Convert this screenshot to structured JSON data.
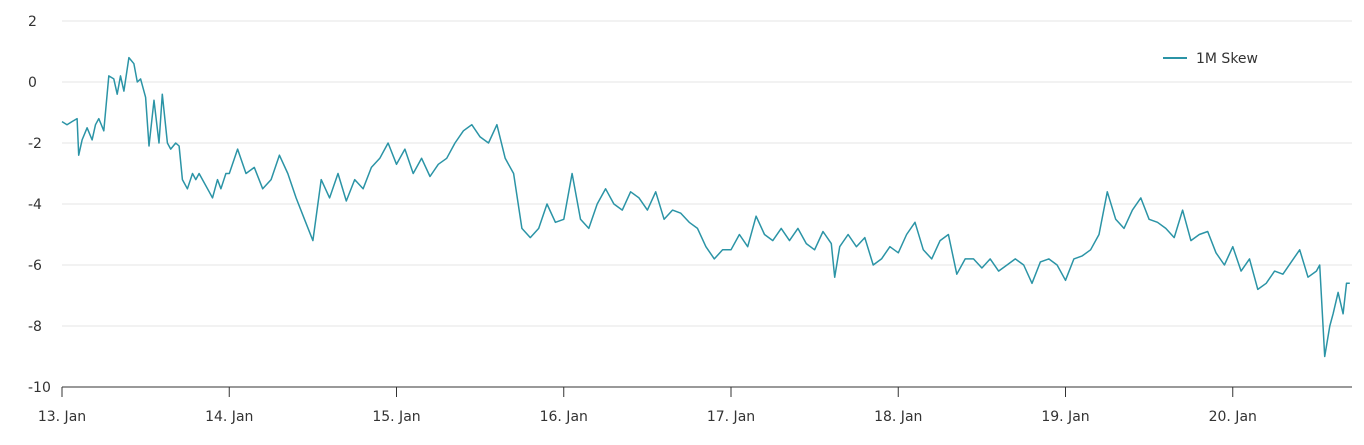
{
  "chart_data": {
    "type": "line",
    "title": "",
    "xlabel": "",
    "ylabel": "",
    "ylim": [
      -10,
      2
    ],
    "xlim": [
      0,
      7.7
    ],
    "y_ticks": [
      "2",
      "0",
      "-2",
      "-4",
      "-6",
      "-8",
      "-10"
    ],
    "x_ticks": [
      "13. Jan",
      "14. Jan",
      "15. Jan",
      "16. Jan",
      "17. Jan",
      "18. Jan",
      "19. Jan",
      "20. Jan"
    ],
    "grid": "horizontal",
    "legend_position": "top-right",
    "series": [
      {
        "name": "1M Skew",
        "color": "#2b94a6",
        "x": [
          0,
          0.03,
          0.06,
          0.09,
          0.1,
          0.12,
          0.15,
          0.18,
          0.2,
          0.22,
          0.25,
          0.28,
          0.31,
          0.33,
          0.35,
          0.37,
          0.4,
          0.43,
          0.45,
          0.47,
          0.5,
          0.52,
          0.55,
          0.58,
          0.6,
          0.63,
          0.65,
          0.68,
          0.7,
          0.72,
          0.75,
          0.78,
          0.8,
          0.82,
          0.85,
          0.88,
          0.9,
          0.93,
          0.95,
          0.98,
          1.0,
          1.05,
          1.1,
          1.15,
          1.2,
          1.25,
          1.3,
          1.35,
          1.4,
          1.45,
          1.5,
          1.55,
          1.6,
          1.65,
          1.7,
          1.75,
          1.8,
          1.85,
          1.9,
          1.95,
          2.0,
          2.05,
          2.1,
          2.15,
          2.2,
          2.25,
          2.3,
          2.35,
          2.4,
          2.45,
          2.5,
          2.55,
          2.6,
          2.65,
          2.7,
          2.75,
          2.8,
          2.85,
          2.9,
          2.95,
          3.0,
          3.05,
          3.1,
          3.15,
          3.2,
          3.25,
          3.3,
          3.35,
          3.4,
          3.45,
          3.5,
          3.55,
          3.6,
          3.65,
          3.7,
          3.75,
          3.8,
          3.85,
          3.9,
          3.95,
          4.0,
          4.05,
          4.1,
          4.15,
          4.2,
          4.25,
          4.3,
          4.35,
          4.4,
          4.45,
          4.5,
          4.55,
          4.6,
          4.62,
          4.65,
          4.7,
          4.75,
          4.8,
          4.85,
          4.9,
          4.95,
          5.0,
          5.05,
          5.1,
          5.15,
          5.2,
          5.25,
          5.3,
          5.35,
          5.4,
          5.45,
          5.5,
          5.55,
          5.6,
          5.65,
          5.7,
          5.75,
          5.8,
          5.85,
          5.9,
          5.95,
          6.0,
          6.05,
          6.1,
          6.15,
          6.2,
          6.25,
          6.3,
          6.35,
          6.4,
          6.45,
          6.5,
          6.55,
          6.6,
          6.65,
          6.7,
          6.75,
          6.8,
          6.85,
          6.9,
          6.95,
          7.0,
          7.05,
          7.1,
          7.15,
          7.2,
          7.25,
          7.3,
          7.35,
          7.4,
          7.45,
          7.5,
          7.52,
          7.55,
          7.58,
          7.6,
          7.63,
          7.66,
          7.68,
          7.7
        ],
        "values": [
          -1.3,
          -1.4,
          -1.3,
          -1.2,
          -2.4,
          -1.9,
          -1.5,
          -1.9,
          -1.4,
          -1.2,
          -1.6,
          0.2,
          0.1,
          -0.4,
          0.2,
          -0.3,
          0.8,
          0.6,
          0.0,
          0.1,
          -0.5,
          -2.1,
          -0.6,
          -2.0,
          -0.4,
          -2.0,
          -2.2,
          -2.0,
          -2.1,
          -3.2,
          -3.5,
          -3.0,
          -3.2,
          -3.0,
          -3.3,
          -3.6,
          -3.8,
          -3.2,
          -3.5,
          -3.0,
          -3.0,
          -2.2,
          -3.0,
          -2.8,
          -3.5,
          -3.2,
          -2.4,
          -3.0,
          -3.8,
          -4.5,
          -5.2,
          -3.2,
          -3.8,
          -3.0,
          -3.9,
          -3.2,
          -3.5,
          -2.8,
          -2.5,
          -2.0,
          -2.7,
          -2.2,
          -3.0,
          -2.5,
          -3.1,
          -2.7,
          -2.5,
          -2.0,
          -1.6,
          -1.4,
          -1.8,
          -2.0,
          -1.4,
          -2.5,
          -3.0,
          -4.8,
          -5.1,
          -4.8,
          -4.0,
          -4.6,
          -4.5,
          -3.0,
          -4.5,
          -4.8,
          -4.0,
          -3.5,
          -4.0,
          -4.2,
          -3.6,
          -3.8,
          -4.2,
          -3.6,
          -4.5,
          -4.2,
          -4.3,
          -4.6,
          -4.8,
          -5.4,
          -5.8,
          -5.5,
          -5.5,
          -5.0,
          -5.4,
          -4.4,
          -5.0,
          -5.2,
          -4.8,
          -5.2,
          -4.8,
          -5.3,
          -5.5,
          -4.9,
          -5.3,
          -6.4,
          -5.4,
          -5.0,
          -5.4,
          -5.1,
          -6.0,
          -5.8,
          -5.4,
          -5.6,
          -5.0,
          -4.6,
          -5.5,
          -5.8,
          -5.2,
          -5.0,
          -6.3,
          -5.8,
          -5.8,
          -6.1,
          -5.8,
          -6.2,
          -6.0,
          -5.8,
          -6.0,
          -6.6,
          -5.9,
          -5.8,
          -6.0,
          -6.5,
          -5.8,
          -5.7,
          -5.5,
          -5.0,
          -3.6,
          -4.5,
          -4.8,
          -4.2,
          -3.8,
          -4.5,
          -4.6,
          -4.8,
          -5.1,
          -4.2,
          -5.2,
          -5.0,
          -4.9,
          -5.6,
          -6.0,
          -5.4,
          -6.2,
          -5.8,
          -6.8,
          -6.6,
          -6.2,
          -6.3,
          -5.9,
          -5.5,
          -6.4,
          -6.2,
          -6.0,
          -9.0,
          -8.0,
          -7.6,
          -6.9,
          -7.6,
          -6.6,
          -6.6
        ]
      }
    ]
  }
}
